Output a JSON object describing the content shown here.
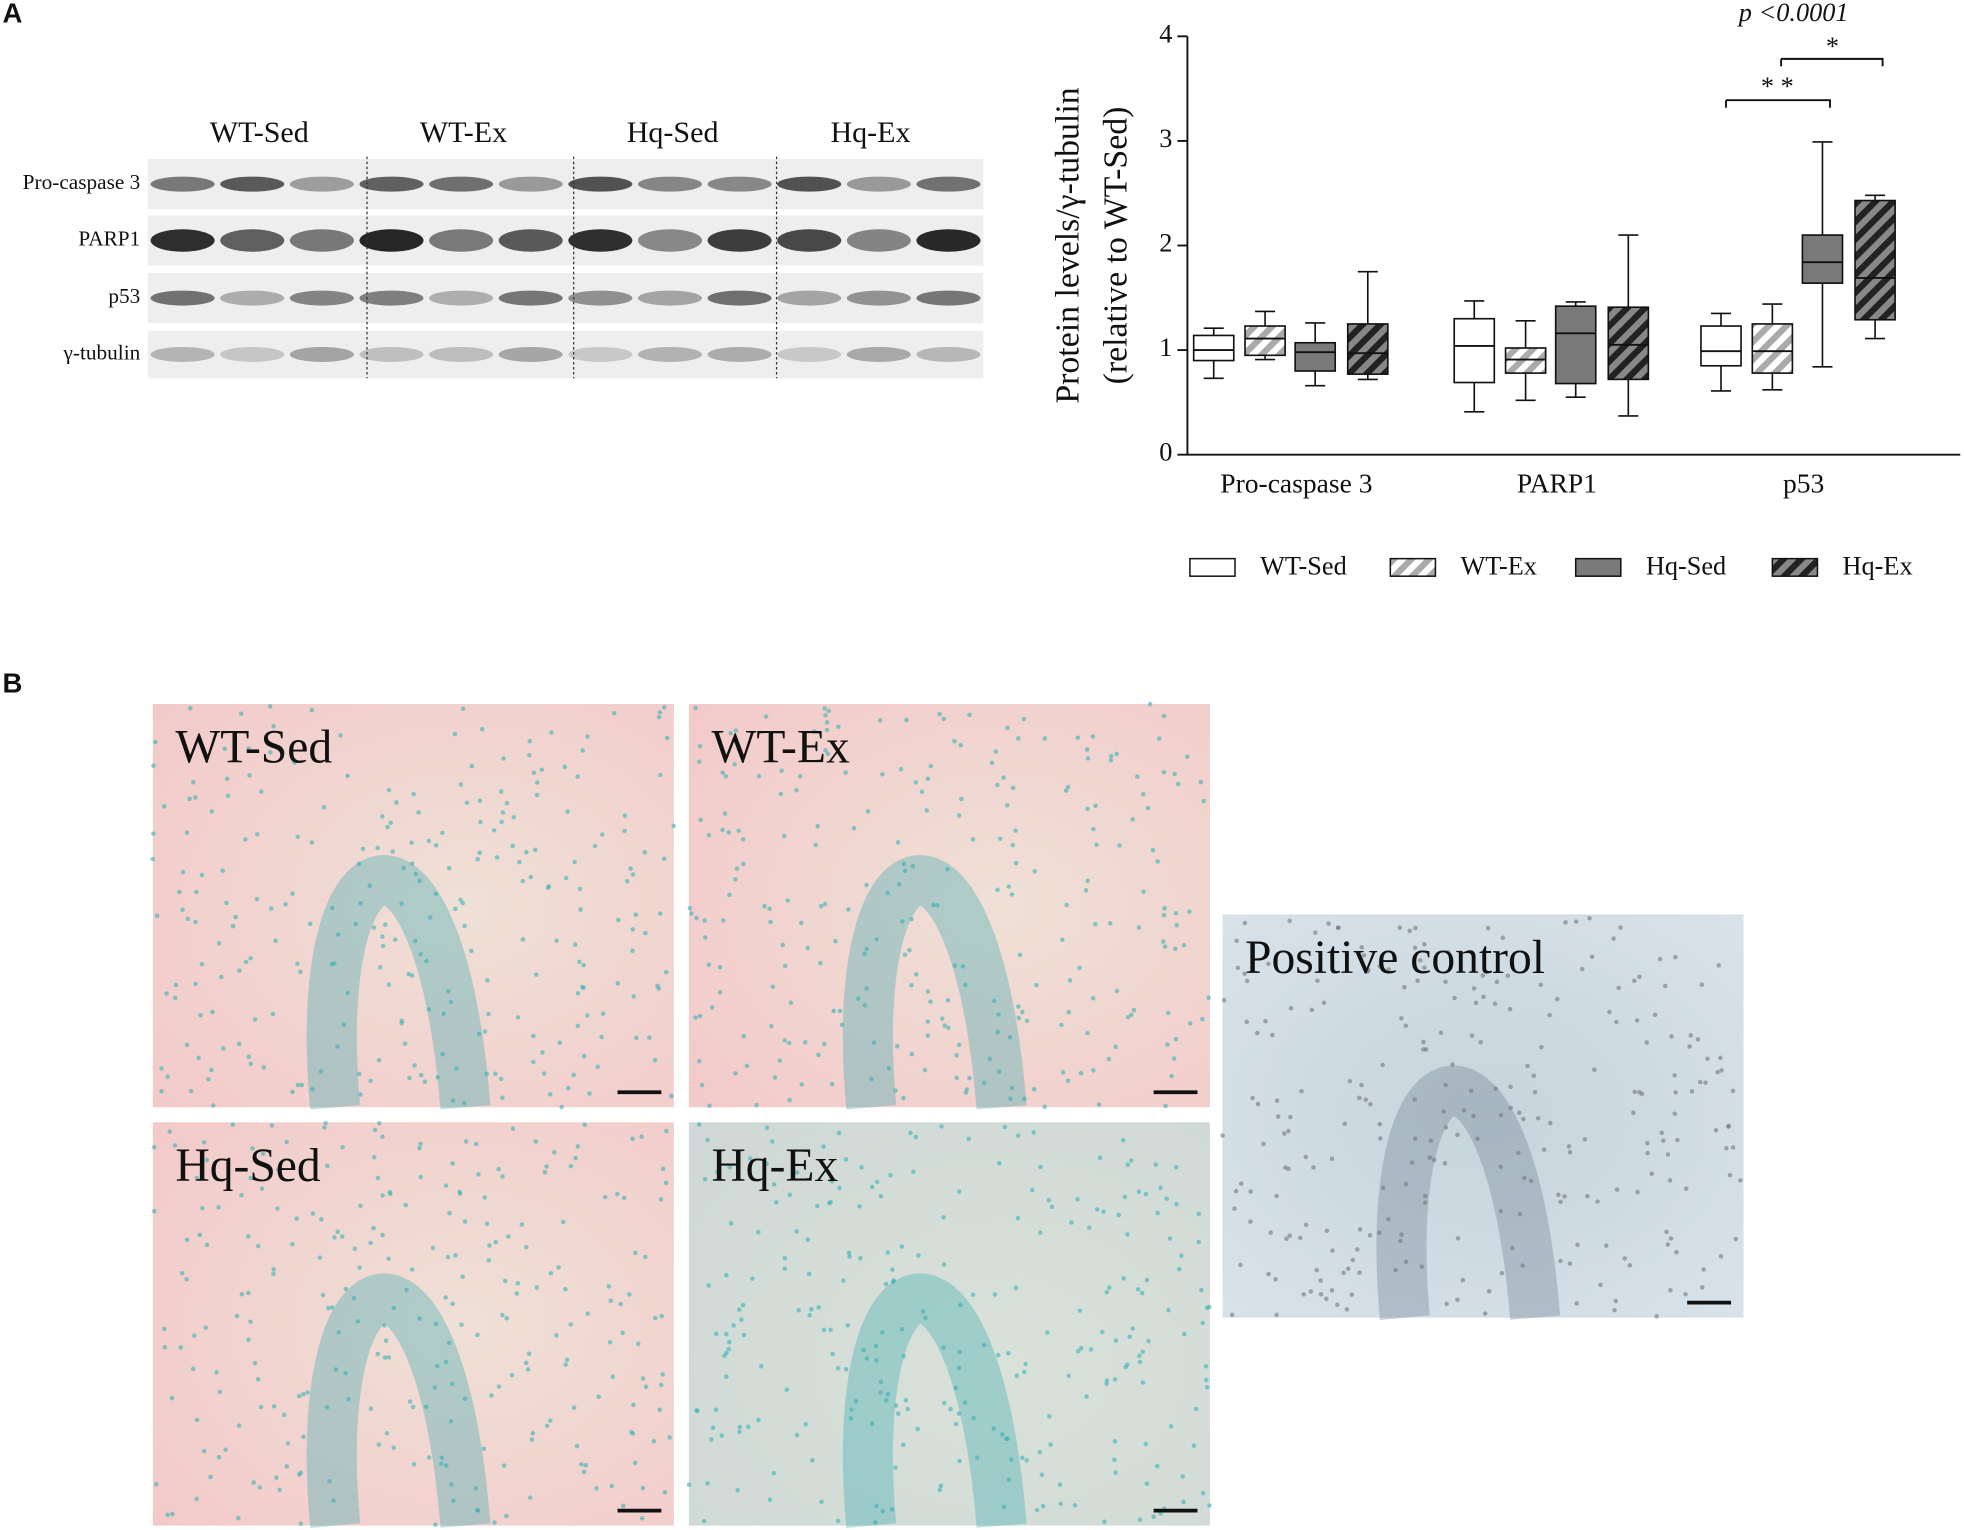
{
  "panel_a": {
    "label": "A",
    "blot": {
      "groups": [
        "WT-Sed",
        "WT-Ex",
        "Hq-Sed",
        "Hq-Ex"
      ],
      "rows": [
        "Pro-caspase 3",
        "PARP1",
        "p53",
        "γ-tubulin"
      ]
    },
    "chart_data": {
      "type": "box",
      "ylabel": [
        "Protein levels/γ-tubulin",
        "(relative to WT-Sed)"
      ],
      "categories": [
        "Pro-caspase 3",
        "PARP1",
        "p53"
      ],
      "ylim": [
        0,
        4
      ],
      "yticks": [
        0,
        1,
        2,
        3,
        4
      ],
      "annotations": [
        "p <0.0001",
        "* *",
        "*"
      ],
      "series": [
        {
          "name": "WT-Sed",
          "color": "#ffffff",
          "hatch": false,
          "values": [
            [
              0.73,
              0.9,
              1.0,
              1.14,
              1.21
            ],
            [
              0.41,
              0.69,
              1.04,
              1.3,
              1.47
            ],
            [
              0.61,
              0.85,
              0.99,
              1.23,
              1.35
            ]
          ]
        },
        {
          "name": "WT-Ex",
          "color": "#b0b0b0",
          "hatch": true,
          "values": [
            [
              0.91,
              0.95,
              1.11,
              1.23,
              1.37
            ],
            [
              0.52,
              0.78,
              0.91,
              1.02,
              1.28
            ],
            [
              0.62,
              0.78,
              0.99,
              1.25,
              1.44
            ]
          ]
        },
        {
          "name": "Hq-Sed",
          "color": "#7a7a7a",
          "hatch": false,
          "values": [
            [
              0.66,
              0.8,
              0.98,
              1.07,
              1.26
            ],
            [
              0.55,
              0.68,
              1.16,
              1.42,
              1.46
            ],
            [
              0.84,
              1.64,
              1.84,
              2.1,
              2.99
            ]
          ]
        },
        {
          "name": "Hq-Ex",
          "color": "#3c3c3c",
          "hatch": true,
          "values": [
            [
              0.72,
              0.77,
              0.97,
              1.25,
              1.75
            ],
            [
              0.37,
              0.72,
              1.05,
              1.41,
              2.1
            ],
            [
              1.11,
              1.29,
              1.69,
              2.43,
              2.48
            ]
          ]
        }
      ]
    }
  },
  "panel_b": {
    "label": "B",
    "images": [
      "WT-Sed",
      "WT-Ex",
      "Hq-Sed",
      "Hq-Ex",
      "Positive control"
    ]
  }
}
